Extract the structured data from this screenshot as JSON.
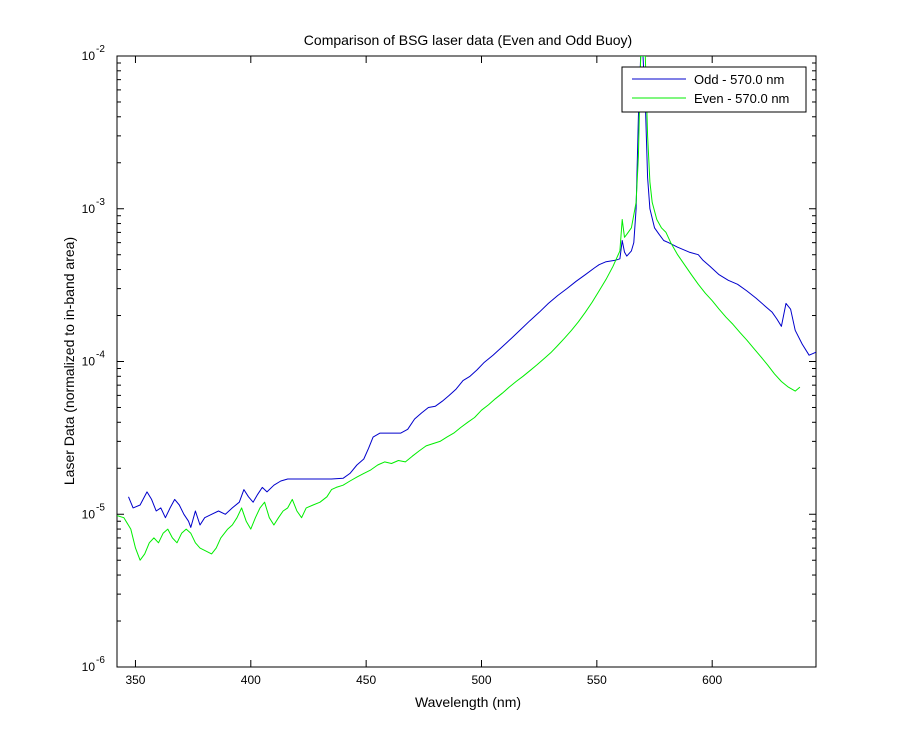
{
  "chart_data": {
    "type": "line",
    "title": "Comparison of BSG laser data (Even and Odd Buoy)",
    "xlabel": "Wavelength (nm)",
    "ylabel": "Laser Data (normalized to in-band area)",
    "xlim": [
      342,
      645
    ],
    "ylim": [
      1e-06,
      0.01
    ],
    "yscale": "log",
    "grid": false,
    "legend_position": "top-right",
    "x_ticks": [
      350,
      400,
      450,
      500,
      550,
      600
    ],
    "y_ticks": [
      {
        "value": 1e-06,
        "base": "10",
        "exp": "-6"
      },
      {
        "value": 1e-05,
        "base": "10",
        "exp": "-5"
      },
      {
        "value": 0.0001,
        "base": "10",
        "exp": "-4"
      },
      {
        "value": 0.001,
        "base": "10",
        "exp": "-3"
      },
      {
        "value": 0.01,
        "base": "10",
        "exp": "-2"
      }
    ],
    "series": [
      {
        "name": "Odd - 570.0 nm",
        "color": "#0000cc",
        "points": [
          [
            347,
            1.3e-05
          ],
          [
            349,
            1.1e-05
          ],
          [
            352,
            1.15e-05
          ],
          [
            355,
            1.4e-05
          ],
          [
            357,
            1.25e-05
          ],
          [
            359,
            1.05e-05
          ],
          [
            361,
            1.1e-05
          ],
          [
            363,
            9.5e-06
          ],
          [
            365,
            1.1e-05
          ],
          [
            367,
            1.25e-05
          ],
          [
            369,
            1.15e-05
          ],
          [
            371,
            1e-05
          ],
          [
            373,
            9e-06
          ],
          [
            374,
            8.2e-06
          ],
          [
            376,
            1.05e-05
          ],
          [
            378,
            8.5e-06
          ],
          [
            380,
            9.5e-06
          ],
          [
            383,
            1e-05
          ],
          [
            386,
            1.05e-05
          ],
          [
            389,
            1e-05
          ],
          [
            392,
            1.1e-05
          ],
          [
            395,
            1.2e-05
          ],
          [
            397,
            1.45e-05
          ],
          [
            399,
            1.3e-05
          ],
          [
            401,
            1.2e-05
          ],
          [
            403,
            1.35e-05
          ],
          [
            405,
            1.5e-05
          ],
          [
            407,
            1.4e-05
          ],
          [
            410,
            1.55e-05
          ],
          [
            413,
            1.65e-05
          ],
          [
            416,
            1.7e-05
          ],
          [
            420,
            1.7e-05
          ],
          [
            425,
            1.7e-05
          ],
          [
            430,
            1.7e-05
          ],
          [
            435,
            1.7e-05
          ],
          [
            440,
            1.72e-05
          ],
          [
            443,
            1.85e-05
          ],
          [
            446,
            2.1e-05
          ],
          [
            449,
            2.3e-05
          ],
          [
            451,
            2.7e-05
          ],
          [
            453,
            3.2e-05
          ],
          [
            456,
            3.4e-05
          ],
          [
            460,
            3.4e-05
          ],
          [
            465,
            3.4e-05
          ],
          [
            468,
            3.6e-05
          ],
          [
            471,
            4.2e-05
          ],
          [
            474,
            4.6e-05
          ],
          [
            477,
            5e-05
          ],
          [
            480,
            5.1e-05
          ],
          [
            483,
            5.5e-05
          ],
          [
            486,
            6e-05
          ],
          [
            489,
            6.6e-05
          ],
          [
            492,
            7.5e-05
          ],
          [
            495,
            8e-05
          ],
          [
            498,
            8.8e-05
          ],
          [
            501,
            9.8e-05
          ],
          [
            505,
            0.00011
          ],
          [
            509,
            0.000125
          ],
          [
            513,
            0.000142
          ],
          [
            517,
            0.000162
          ],
          [
            521,
            0.000185
          ],
          [
            525,
            0.00021
          ],
          [
            529,
            0.00024
          ],
          [
            533,
            0.00027
          ],
          [
            537,
            0.0003
          ],
          [
            541,
            0.000335
          ],
          [
            545,
            0.00037
          ],
          [
            549,
            0.00041
          ],
          [
            551,
            0.00043
          ],
          [
            554,
            0.00045
          ],
          [
            558,
            0.00046
          ],
          [
            560,
            0.00047
          ],
          [
            561,
            0.00062
          ],
          [
            562,
            0.00052
          ],
          [
            563,
            0.00049
          ],
          [
            565,
            0.00053
          ],
          [
            566,
            0.0006
          ],
          [
            567,
            0.001
          ],
          [
            568,
            0.004
          ],
          [
            569,
            0.01
          ],
          [
            570,
            0.01
          ],
          [
            571,
            0.005
          ],
          [
            572,
            0.0016
          ],
          [
            573,
            0.001
          ],
          [
            575,
            0.00075
          ],
          [
            577,
            0.00068
          ],
          [
            579,
            0.00062
          ],
          [
            581,
            0.0006
          ],
          [
            585,
            0.00056
          ],
          [
            590,
            0.00052
          ],
          [
            594,
            0.0005
          ],
          [
            596,
            0.00046
          ],
          [
            599,
            0.00042
          ],
          [
            603,
            0.00037
          ],
          [
            607,
            0.00034
          ],
          [
            611,
            0.00032
          ],
          [
            615,
            0.00029
          ],
          [
            619,
            0.00026
          ],
          [
            623,
            0.00023
          ],
          [
            626,
            0.00021
          ],
          [
            628,
            0.00019
          ],
          [
            630,
            0.00017
          ],
          [
            632,
            0.00024
          ],
          [
            634,
            0.00022
          ],
          [
            636,
            0.00016
          ],
          [
            639,
            0.00013
          ],
          [
            642,
            0.00011
          ],
          [
            645,
            0.000115
          ]
        ]
      },
      {
        "name": "Even - 570.0 nm",
        "color": "#00ee00",
        "points": [
          [
            342,
            9.8e-06
          ],
          [
            345,
            9.5e-06
          ],
          [
            348,
            8e-06
          ],
          [
            350,
            6e-06
          ],
          [
            352,
            5e-06
          ],
          [
            354,
            5.5e-06
          ],
          [
            356,
            6.5e-06
          ],
          [
            358,
            7e-06
          ],
          [
            360,
            6.5e-06
          ],
          [
            362,
            7.5e-06
          ],
          [
            364,
            8e-06
          ],
          [
            366,
            7e-06
          ],
          [
            368,
            6.5e-06
          ],
          [
            370,
            7.5e-06
          ],
          [
            372,
            8e-06
          ],
          [
            374,
            7.5e-06
          ],
          [
            376,
            6.5e-06
          ],
          [
            378,
            6e-06
          ],
          [
            380,
            5.8e-06
          ],
          [
            383,
            5.5e-06
          ],
          [
            385,
            6e-06
          ],
          [
            387,
            7e-06
          ],
          [
            390,
            8e-06
          ],
          [
            392,
            8.5e-06
          ],
          [
            394,
            9.5e-06
          ],
          [
            396,
            1.1e-05
          ],
          [
            398,
            9e-06
          ],
          [
            400,
            8e-06
          ],
          [
            402,
            9.5e-06
          ],
          [
            404,
            1.1e-05
          ],
          [
            406,
            1.2e-05
          ],
          [
            408,
            9.5e-06
          ],
          [
            410,
            8.5e-06
          ],
          [
            412,
            9.5e-06
          ],
          [
            414,
            1.05e-05
          ],
          [
            416,
            1.1e-05
          ],
          [
            418,
            1.25e-05
          ],
          [
            420,
            1.05e-05
          ],
          [
            422,
            9.5e-06
          ],
          [
            424,
            1.1e-05
          ],
          [
            427,
            1.15e-05
          ],
          [
            430,
            1.2e-05
          ],
          [
            433,
            1.3e-05
          ],
          [
            435,
            1.45e-05
          ],
          [
            437,
            1.5e-05
          ],
          [
            440,
            1.55e-05
          ],
          [
            443,
            1.65e-05
          ],
          [
            446,
            1.75e-05
          ],
          [
            449,
            1.85e-05
          ],
          [
            452,
            1.95e-05
          ],
          [
            455,
            2.1e-05
          ],
          [
            458,
            2.2e-05
          ],
          [
            461,
            2.15e-05
          ],
          [
            464,
            2.25e-05
          ],
          [
            467,
            2.2e-05
          ],
          [
            470,
            2.4e-05
          ],
          [
            473,
            2.6e-05
          ],
          [
            476,
            2.8e-05
          ],
          [
            479,
            2.9e-05
          ],
          [
            482,
            3e-05
          ],
          [
            485,
            3.2e-05
          ],
          [
            488,
            3.4e-05
          ],
          [
            491,
            3.7e-05
          ],
          [
            494,
            4e-05
          ],
          [
            497,
            4.3e-05
          ],
          [
            500,
            4.8e-05
          ],
          [
            503,
            5.2e-05
          ],
          [
            506,
            5.7e-05
          ],
          [
            509,
            6.2e-05
          ],
          [
            512,
            6.8e-05
          ],
          [
            515,
            7.4e-05
          ],
          [
            518,
            8e-05
          ],
          [
            521,
            8.7e-05
          ],
          [
            524,
            9.5e-05
          ],
          [
            527,
            0.000104
          ],
          [
            530,
            0.000114
          ],
          [
            533,
            0.000127
          ],
          [
            536,
            0.000142
          ],
          [
            539,
            0.00016
          ],
          [
            542,
            0.000182
          ],
          [
            545,
            0.00021
          ],
          [
            548,
            0.000245
          ],
          [
            551,
            0.00029
          ],
          [
            554,
            0.000345
          ],
          [
            557,
            0.00042
          ],
          [
            560,
            0.00053
          ],
          [
            561,
            0.00085
          ],
          [
            562,
            0.00065
          ],
          [
            563,
            0.00068
          ],
          [
            565,
            0.00075
          ],
          [
            567,
            0.0011
          ],
          [
            568,
            0.0022
          ],
          [
            569,
            0.01
          ],
          [
            571,
            0.01
          ],
          [
            572,
            0.003
          ],
          [
            573,
            0.0015
          ],
          [
            574,
            0.0011
          ],
          [
            576,
            0.00085
          ],
          [
            578,
            0.00075
          ],
          [
            580,
            0.0007
          ],
          [
            582,
            0.0006
          ],
          [
            585,
            0.0005
          ],
          [
            588,
            0.00043
          ],
          [
            591,
            0.00037
          ],
          [
            594,
            0.00032
          ],
          [
            597,
            0.00028
          ],
          [
            600,
            0.00025
          ],
          [
            603,
            0.00022
          ],
          [
            606,
            0.000195
          ],
          [
            609,
            0.000175
          ],
          [
            612,
            0.000155
          ],
          [
            615,
            0.000138
          ],
          [
            618,
            0.000122
          ],
          [
            621,
            0.000108
          ],
          [
            624,
            9.5e-05
          ],
          [
            627,
            8.3e-05
          ],
          [
            630,
            7.4e-05
          ],
          [
            633,
            6.8e-05
          ],
          [
            636,
            6.4e-05
          ],
          [
            638,
            6.8e-05
          ]
        ]
      }
    ]
  }
}
